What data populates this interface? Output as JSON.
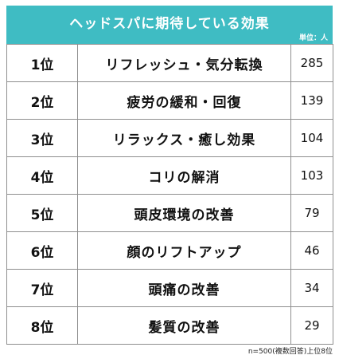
{
  "header": {
    "title": "ヘッドスパに期待している効果",
    "unit": "単位：人",
    "color": "#3fbcc3"
  },
  "chart_data": {
    "type": "table",
    "title": "ヘッドスパに期待している効果",
    "unit": "単位：人",
    "rows": [
      {
        "rank": "1位",
        "item": "リフレッシュ・気分転換",
        "value": "285"
      },
      {
        "rank": "2位",
        "item": "疲労の緩和・回復",
        "value": "139"
      },
      {
        "rank": "3位",
        "item": "リラックス・癒し効果",
        "value": "104"
      },
      {
        "rank": "4位",
        "item": "コリの解消",
        "value": "103"
      },
      {
        "rank": "5位",
        "item": "頭皮環境の改善",
        "value": "79"
      },
      {
        "rank": "6位",
        "item": "顔のリフトアップ",
        "value": "46"
      },
      {
        "rank": "7位",
        "item": "頭痛の改善",
        "value": "34"
      },
      {
        "rank": "8位",
        "item": "髪質の改善",
        "value": "29"
      }
    ],
    "footnote": "n=500(複数回答)上位8位"
  }
}
